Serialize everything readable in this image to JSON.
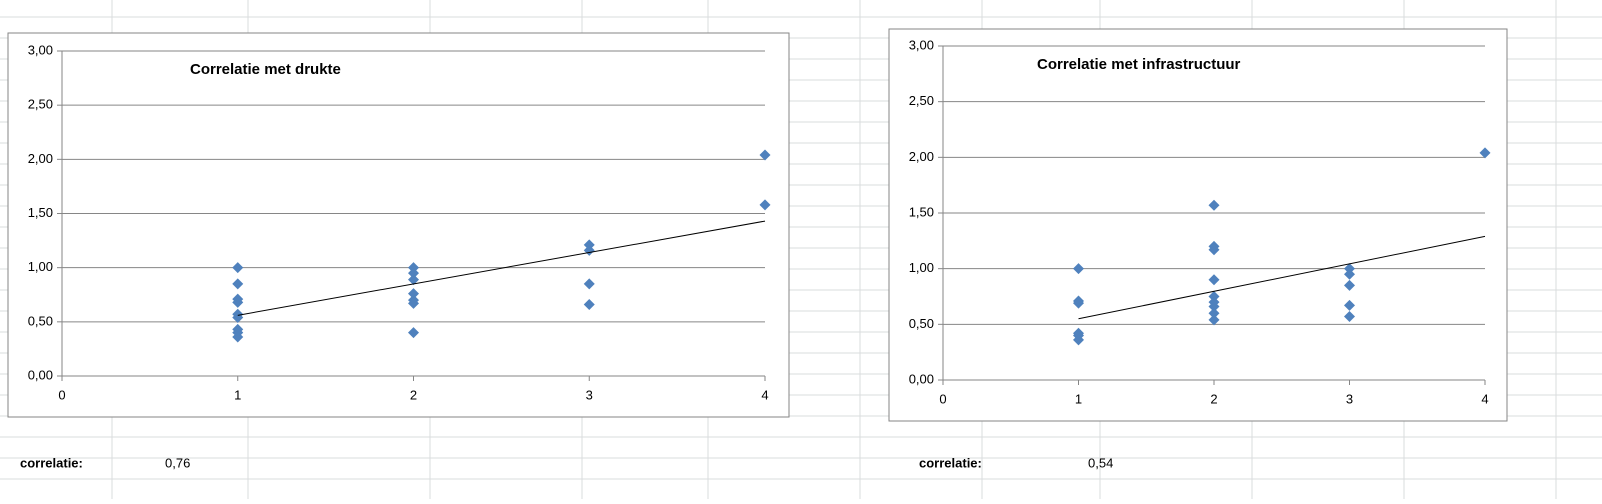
{
  "chart_data": [
    {
      "type": "scatter",
      "title": "Correlatie met drukte",
      "xlim": [
        0,
        4
      ],
      "xticks": [
        0,
        1,
        2,
        3,
        4
      ],
      "ylim": [
        0,
        3
      ],
      "yticks": [
        {
          "value": 0,
          "label": "0,00"
        },
        {
          "value": 0.5,
          "label": "0,50"
        },
        {
          "value": 1,
          "label": "1,00"
        },
        {
          "value": 1.5,
          "label": "1,50"
        },
        {
          "value": 2,
          "label": "2,00"
        },
        {
          "value": 2.5,
          "label": "2,50"
        },
        {
          "value": 3,
          "label": "3,00"
        }
      ],
      "grid": true,
      "series": [
        {
          "color": "#4f81bd",
          "x": [
            1,
            1,
            1,
            1,
            1,
            1,
            1,
            1,
            1,
            2,
            2,
            2,
            2,
            2,
            2,
            2,
            3,
            3,
            3,
            3,
            4,
            4
          ],
          "values": [
            1.0,
            0.85,
            0.71,
            0.68,
            0.57,
            0.54,
            0.43,
            0.4,
            0.36,
            1.0,
            0.95,
            0.89,
            0.76,
            0.7,
            0.67,
            0.4,
            1.21,
            1.16,
            0.85,
            0.66,
            2.04,
            1.58
          ]
        }
      ],
      "trendline": {
        "color": "#000000",
        "x": [
          1,
          4
        ],
        "values": [
          0.56,
          1.43
        ]
      }
    },
    {
      "type": "scatter",
      "title": "Correlatie met infrastructuur",
      "xlim": [
        0,
        4
      ],
      "xticks": [
        0,
        1,
        2,
        3,
        4
      ],
      "ylim": [
        0,
        3
      ],
      "yticks": [
        {
          "value": 0,
          "label": "0,00"
        },
        {
          "value": 0.5,
          "label": "0,50"
        },
        {
          "value": 1,
          "label": "1,00"
        },
        {
          "value": 1.5,
          "label": "1,50"
        },
        {
          "value": 2,
          "label": "2,00"
        },
        {
          "value": 2.5,
          "label": "2,50"
        },
        {
          "value": 3,
          "label": "3,00"
        }
      ],
      "grid": true,
      "series": [
        {
          "color": "#4f81bd",
          "x": [
            1,
            1,
            1,
            1,
            1,
            1,
            2,
            2,
            2,
            2,
            2,
            2,
            2,
            2,
            2,
            3,
            3,
            3,
            3,
            3,
            4
          ],
          "values": [
            1.0,
            0.71,
            0.69,
            0.42,
            0.4,
            0.36,
            1.57,
            1.2,
            1.17,
            0.9,
            0.75,
            0.7,
            0.66,
            0.6,
            0.54,
            1.0,
            0.95,
            0.85,
            0.67,
            0.57,
            2.04
          ]
        }
      ],
      "trendline": {
        "color": "#000000",
        "x": [
          1,
          4
        ],
        "values": [
          0.55,
          1.29
        ]
      }
    }
  ],
  "cells": [
    {
      "label": "correlatie:",
      "value": "0,76"
    },
    {
      "label": "correlatie:",
      "value": "0,54"
    }
  ]
}
